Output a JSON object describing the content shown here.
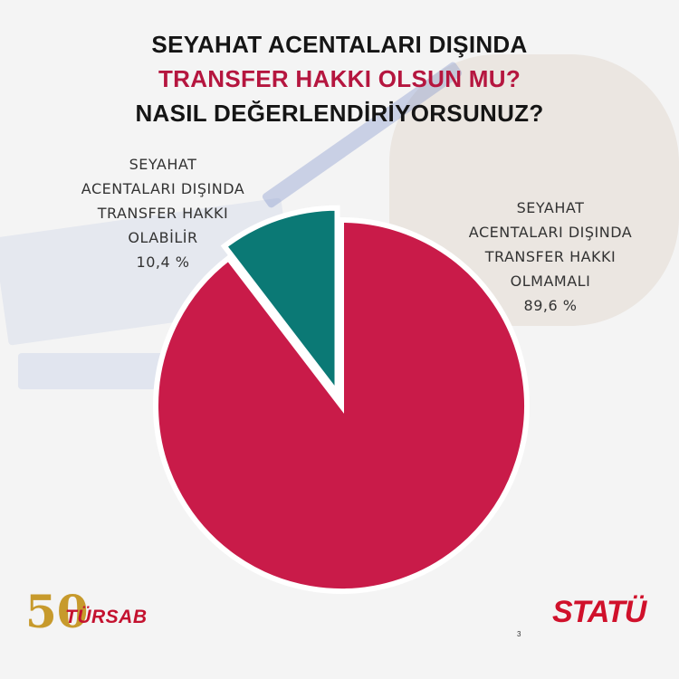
{
  "title": {
    "line1": "SEYAHAT ACENTALARI DIŞINDA",
    "line2": "TRANSFER HAKKI OLSUN MU?",
    "line3": "NASIL DEĞERLENDİRİYORSUNUZ?"
  },
  "colors": {
    "title_accent": "#b5163f",
    "slice_yes": "#0b7975",
    "slice_no": "#c91b49"
  },
  "chart_data": {
    "type": "pie",
    "slices": [
      {
        "label_lines": [
          "SEYAHAT",
          "ACENTALARI DIŞINDA",
          "TRANSFER HAKKI",
          "OLABİLİR"
        ],
        "value": 10.4,
        "value_text": "10,4 %",
        "color": "#0b7975",
        "exploded": true
      },
      {
        "label_lines": [
          "SEYAHAT",
          "ACENTALARI DIŞINDA",
          "TRANSFER HAKKI",
          "OLMAMALI"
        ],
        "value": 89.6,
        "value_text": "89,6 %",
        "color": "#c91b49",
        "exploded": false
      }
    ],
    "start_angle_deg": 0,
    "direction": "counterclockwise"
  },
  "logos": {
    "left_number": "50",
    "left_name": "TÜRSAB",
    "right_name": "STATÜ"
  },
  "page_number": "3"
}
